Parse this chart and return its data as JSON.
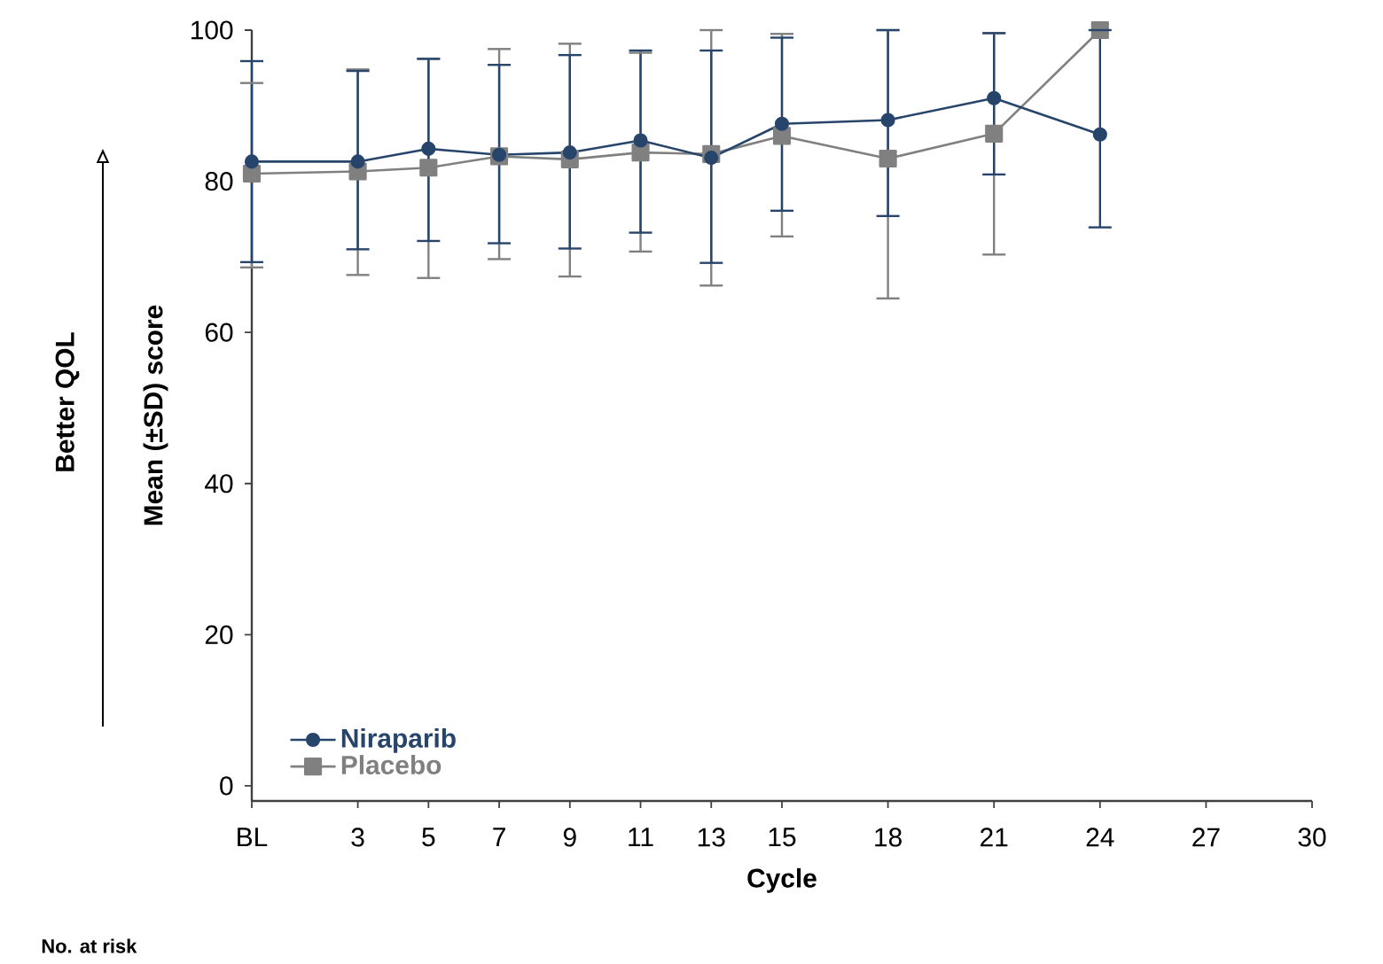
{
  "chart_data": {
    "type": "line",
    "xlabel": "Cycle",
    "ylabel": "Mean (±SD) score",
    "annotations": [
      "Better QOL",
      "No. at risk"
    ],
    "x": [
      0,
      3,
      5,
      7,
      9,
      11,
      13,
      15,
      18,
      21,
      24
    ],
    "xlim": [
      0,
      30
    ],
    "xticks": [
      {
        "value": 0,
        "label": "BL"
      },
      3,
      5,
      7,
      9,
      11,
      13,
      15,
      18,
      21,
      24,
      27,
      30
    ],
    "ylim": [
      -2,
      100
    ],
    "yticks": [
      0,
      20,
      40,
      60,
      80,
      100
    ],
    "legend": "bottom left",
    "line_style": "solid",
    "series": [
      {
        "name": "Niraparib",
        "color": "#27456b",
        "marker": "circle",
        "values": [
          82.6,
          82.6,
          84.3,
          83.5,
          83.8,
          85.4,
          83.1,
          87.6,
          88.1,
          91.0,
          86.2
        ],
        "errors": [
          [
            69.3,
            95.9
          ],
          [
            71.0,
            94.6
          ],
          [
            72.1,
            96.2
          ],
          [
            71.8,
            95.4
          ],
          [
            71.1,
            96.7
          ],
          [
            73.2,
            97.3
          ],
          [
            69.2,
            97.3
          ],
          [
            76.1,
            99.0
          ],
          [
            75.4,
            100
          ],
          [
            80.9,
            99.6
          ],
          [
            73.9,
            100
          ]
        ]
      },
      {
        "name": "Placebo",
        "color": "#808080",
        "marker": "square",
        "values": [
          81.0,
          81.3,
          81.8,
          83.3,
          82.9,
          83.8,
          83.6,
          86.0,
          83.0,
          86.3,
          100
        ],
        "errors": [
          [
            68.6,
            93.0
          ],
          [
            67.6,
            94.8
          ],
          [
            67.2,
            96.2
          ],
          [
            69.7,
            97.5
          ],
          [
            67.4,
            98.2
          ],
          [
            70.7,
            97.0
          ],
          [
            66.2,
            100
          ],
          [
            72.7,
            99.5
          ],
          [
            64.5,
            100
          ],
          [
            70.3,
            99.6
          ],
          null
        ]
      }
    ]
  }
}
